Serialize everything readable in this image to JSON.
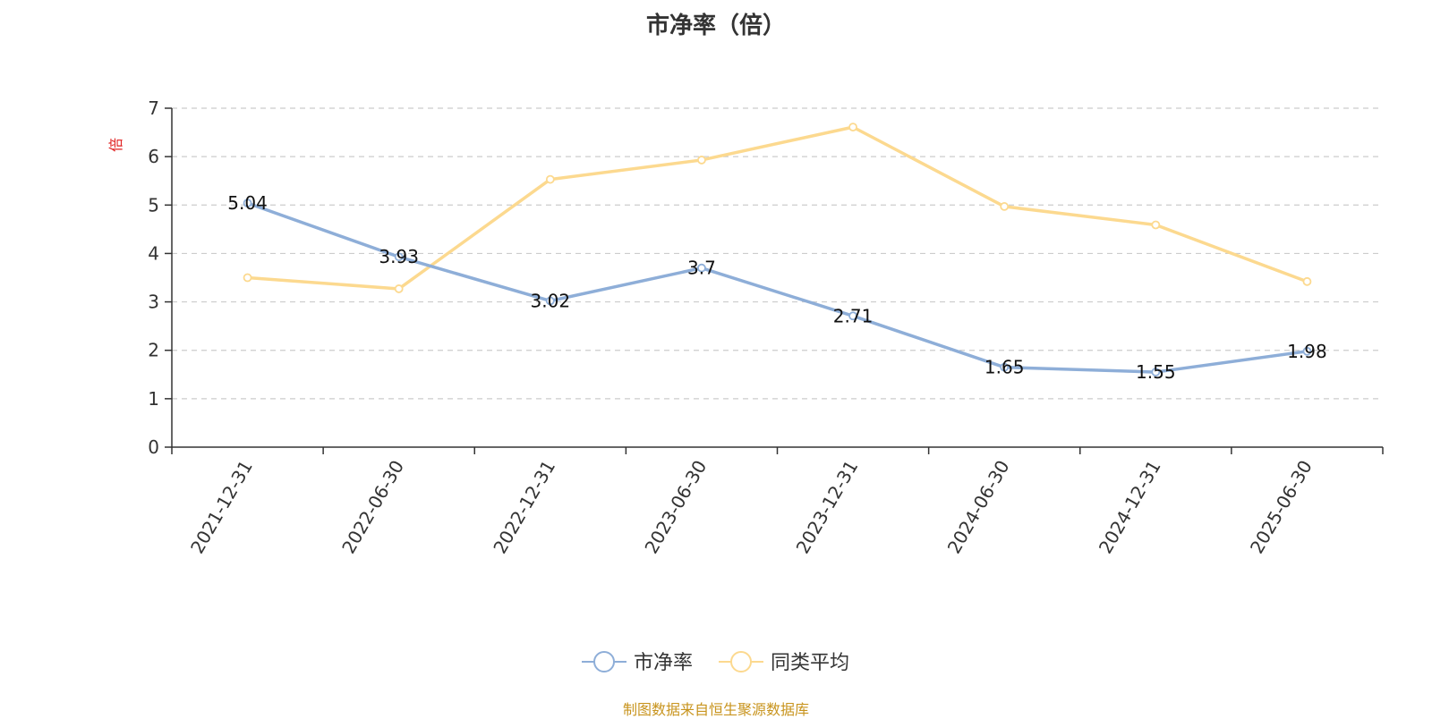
{
  "chart_data": {
    "type": "line",
    "title": "市净率（倍）",
    "ylabel": "倍",
    "categories": [
      "2021-12-31",
      "2022-06-30",
      "2022-12-31",
      "2023-06-30",
      "2023-12-31",
      "2024-06-30",
      "2024-12-31",
      "2025-06-30"
    ],
    "ylim": [
      0,
      7
    ],
    "yticks": [
      "0",
      "1",
      "2",
      "3",
      "4",
      "5",
      "6",
      "7"
    ],
    "grid": true,
    "legend_position": "bottom-center",
    "series": [
      {
        "name": "市净率",
        "values": [
          5.04,
          3.93,
          3.02,
          3.7,
          2.71,
          1.65,
          1.55,
          1.98
        ],
        "labels": [
          "5.04",
          "3.93",
          "3.02",
          "3.7",
          "2.71",
          "1.65",
          "1.55",
          "1.98"
        ],
        "color": "#8eaed8"
      },
      {
        "name": "同类平均",
        "values": [
          3.5,
          3.27,
          5.53,
          5.93,
          6.61,
          4.97,
          4.59,
          3.42
        ],
        "color": "#fcd98f"
      }
    ]
  },
  "source_note": "制图数据来自恒生聚源数据库",
  "colors": {
    "axis": "#333333",
    "grid": "#cccccc",
    "ylabel": "#e02020",
    "source_note": "#c8941e"
  }
}
